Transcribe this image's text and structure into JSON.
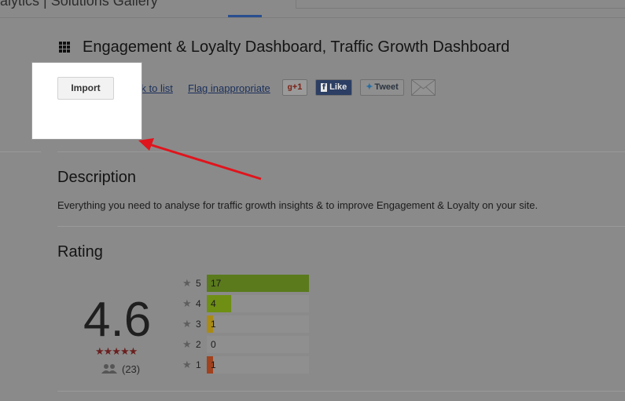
{
  "header": {
    "site": "alytics | Solutions Gallery"
  },
  "solution": {
    "title": "Engagement & Loyalty Dashboard, Traffic Growth Dashboard",
    "actions": {
      "import": "Import",
      "back": "Back to list",
      "flag": "Flag inappropriate",
      "gplus": "+1",
      "like": "Like",
      "tweet": "Tweet"
    }
  },
  "description": {
    "heading": "Description",
    "text": "Everything you need to analyse for traffic growth insights & to improve Engagement & Loyalty on your site."
  },
  "rating": {
    "heading": "Rating",
    "average": "4.6",
    "count": "(23)",
    "breakdown": [
      {
        "stars": 5,
        "count": 17,
        "color": "#5a7a1c"
      },
      {
        "stars": 4,
        "count": 4,
        "color": "#6e8f14"
      },
      {
        "stars": 3,
        "count": 1,
        "color": "#a88a16"
      },
      {
        "stars": 2,
        "count": 0,
        "color": "#a06a18"
      },
      {
        "stars": 1,
        "count": 1,
        "color": "#a0421e"
      }
    ]
  }
}
